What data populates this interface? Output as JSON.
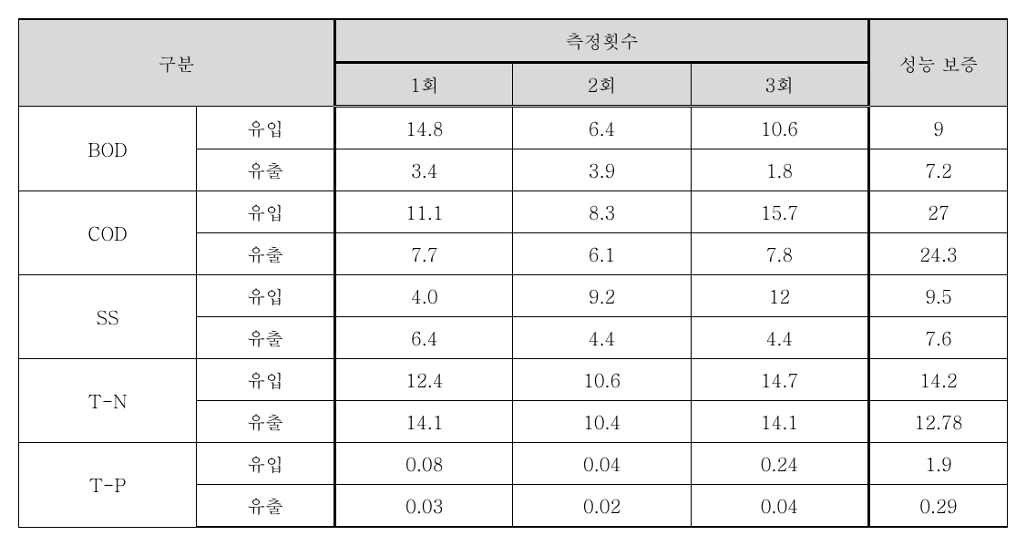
{
  "table": {
    "type": "table",
    "background_color": "#ffffff",
    "header_bg": "#d9d9d9",
    "border_color": "#000000",
    "font_size_pt": 15,
    "columns": [
      {
        "key": "param",
        "width_pct": 18
      },
      {
        "key": "flow",
        "width_pct": 14
      },
      {
        "key": "m1",
        "width_pct": 18
      },
      {
        "key": "m2",
        "width_pct": 18
      },
      {
        "key": "m3",
        "width_pct": 18
      },
      {
        "key": "perf",
        "width_pct": 14
      }
    ],
    "header": {
      "gubun": "구분",
      "measure_count": "측정횟수",
      "m1": "1회",
      "m2": "2회",
      "m3": "3회",
      "perf": "성능 보증"
    },
    "flow_labels": {
      "in": "유입",
      "out": "유출"
    },
    "groups": [
      {
        "name": "BOD",
        "in": {
          "m1": "14.8",
          "m2": "6.4",
          "m3": "10.6",
          "perf": "9"
        },
        "out": {
          "m1": "3.4",
          "m2": "3.9",
          "m3": "1.8",
          "perf": "7.2"
        }
      },
      {
        "name": "COD",
        "in": {
          "m1": "11.1",
          "m2": "8.3",
          "m3": "15.7",
          "perf": "27"
        },
        "out": {
          "m1": "7.7",
          "m2": "6.1",
          "m3": "7.8",
          "perf": "24.3"
        }
      },
      {
        "name": "SS",
        "in": {
          "m1": "4.0",
          "m2": "9.2",
          "m3": "12",
          "perf": "9.5"
        },
        "out": {
          "m1": "6.4",
          "m2": "4.4",
          "m3": "4.4",
          "perf": "7.6"
        }
      },
      {
        "name": "T-N",
        "in": {
          "m1": "12.4",
          "m2": "10.6",
          "m3": "14.7",
          "perf": "14.2"
        },
        "out": {
          "m1": "14.1",
          "m2": "10.4",
          "m3": "14.1",
          "perf": "12.78"
        }
      },
      {
        "name": "T-P",
        "in": {
          "m1": "0.08",
          "m2": "0.04",
          "m3": "0.24",
          "perf": "1.9"
        },
        "out": {
          "m1": "0.03",
          "m2": "0.02",
          "m3": "0.04",
          "perf": "0.29"
        }
      }
    ]
  }
}
